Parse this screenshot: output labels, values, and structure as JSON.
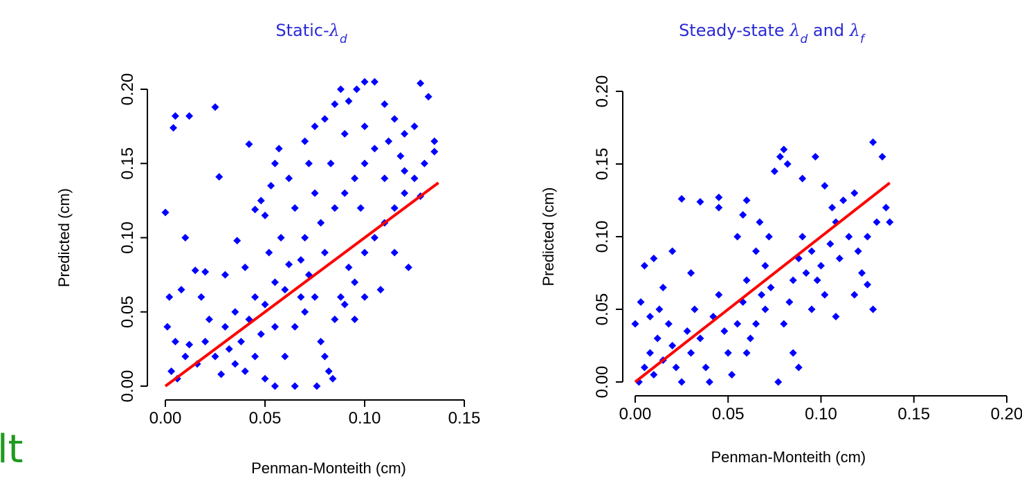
{
  "slide_fragment": "lt",
  "chart_data": [
    {
      "type": "scatter",
      "title": [
        {
          "text": "Static-",
          "style": "normal"
        },
        {
          "text": "λ",
          "style": "italic"
        },
        {
          "text": "d",
          "style": "subscript"
        }
      ],
      "xlabel": "Penman-Monteith (cm)",
      "ylabel": "Predicted  (cm)",
      "xlim": [
        0,
        0.15
      ],
      "ylim": [
        0,
        0.2
      ],
      "xticks": [
        {
          "value": 0,
          "label": "0.00"
        },
        {
          "value": 0.05,
          "label": "0.05"
        },
        {
          "value": 0.1,
          "label": "0.10"
        },
        {
          "value": 0.15,
          "label": "0.15"
        }
      ],
      "yticks": [
        {
          "value": 0,
          "label": "0.00"
        },
        {
          "value": 0.05,
          "label": "0.05"
        },
        {
          "value": 0.1,
          "label": "0.10"
        },
        {
          "value": 0.15,
          "label": "0.15"
        },
        {
          "value": 0.2,
          "label": "0.20"
        }
      ],
      "color": "#0000ff",
      "x": [
        0,
        0.005,
        0.004,
        0.012,
        0.025,
        0.042,
        0.027,
        0.01,
        0.045,
        0.036,
        0.02,
        0.015,
        0.03,
        0.002,
        0.008,
        0.018,
        0.022,
        0.001,
        0.005,
        0.01,
        0.003,
        0.006,
        0.012,
        0.016,
        0.02,
        0.025,
        0.028,
        0.032,
        0.035,
        0.038,
        0.04,
        0.045,
        0.048,
        0.05,
        0.055,
        0.06,
        0.065,
        0.055,
        0.042,
        0.035,
        0.03,
        0.045,
        0.05,
        0.055,
        0.06,
        0.052,
        0.058,
        0.05,
        0.048,
        0.053,
        0.055,
        0.057,
        0.062,
        0.065,
        0.07,
        0.068,
        0.072,
        0.075,
        0.07,
        0.065,
        0.078,
        0.08,
        0.082,
        0.076,
        0.084,
        0.085,
        0.088,
        0.09,
        0.092,
        0.095,
        0.08,
        0.078,
        0.075,
        0.072,
        0.07,
        0.075,
        0.08,
        0.085,
        0.088,
        0.092,
        0.096,
        0.1,
        0.105,
        0.11,
        0.115,
        0.12,
        0.125,
        0.128,
        0.132,
        0.135,
        0.13,
        0.125,
        0.12,
        0.115,
        0.11,
        0.105,
        0.1,
        0.098,
        0.095,
        0.09,
        0.085,
        0.1,
        0.105,
        0.11,
        0.118,
        0.122,
        0.115,
        0.108,
        0.1,
        0.095,
        0.128,
        0.135,
        0.09,
        0.083,
        0.1,
        0.112,
        0.12,
        0.068,
        0.062,
        0.04
      ],
      "values": [
        0.117,
        0.182,
        0.174,
        0.182,
        0.188,
        0.163,
        0.141,
        0.1,
        0.119,
        0.098,
        0.077,
        0.078,
        0.075,
        0.06,
        0.065,
        0.06,
        0.045,
        0.04,
        0.03,
        0.02,
        0.01,
        0.005,
        0.028,
        0.015,
        0.03,
        0.02,
        0.008,
        0.025,
        0.015,
        0.03,
        0.01,
        0.02,
        0.035,
        0.005,
        0.04,
        0.02,
        0,
        0,
        0.045,
        0.05,
        0.04,
        0.06,
        0.055,
        0.07,
        0.065,
        0.09,
        0.1,
        0.115,
        0.125,
        0.135,
        0.15,
        0.16,
        0.14,
        0.12,
        0.1,
        0.085,
        0.075,
        0.06,
        0.05,
        0.04,
        0.03,
        0.02,
        0.01,
        0,
        0.005,
        0.045,
        0.06,
        0.055,
        0.08,
        0.07,
        0.09,
        0.11,
        0.13,
        0.15,
        0.165,
        0.175,
        0.18,
        0.19,
        0.2,
        0.192,
        0.2,
        0.205,
        0.205,
        0.19,
        0.18,
        0.17,
        0.175,
        0.204,
        0.195,
        0.165,
        0.15,
        0.14,
        0.13,
        0.12,
        0.11,
        0.1,
        0.09,
        0.12,
        0.14,
        0.13,
        0.12,
        0.15,
        0.16,
        0.14,
        0.155,
        0.08,
        0.09,
        0.065,
        0.06,
        0.045,
        0.128,
        0.158,
        0.17,
        0.15,
        0.175,
        0.165,
        0.145,
        0.06,
        0.082,
        0.08
      ],
      "fit_line": {
        "color": "#ff0000",
        "x": [
          0,
          0.137
        ],
        "y": [
          0,
          0.137
        ]
      }
    },
    {
      "type": "scatter",
      "title": [
        {
          "text": "Steady-state ",
          "style": "normal"
        },
        {
          "text": "λ",
          "style": "italic"
        },
        {
          "text": "d",
          "style": "subscript"
        },
        {
          "text": " and ",
          "style": "normal"
        },
        {
          "text": "λ",
          "style": "italic"
        },
        {
          "text": "f",
          "style": "subscript"
        }
      ],
      "xlabel": "Penman-Monteith (cm)",
      "ylabel": "Predicted (cm)",
      "xlim": [
        0,
        0.2
      ],
      "ylim": [
        0,
        0.2
      ],
      "xticks": [
        {
          "value": 0,
          "label": "0.00"
        },
        {
          "value": 0.05,
          "label": "0.05"
        },
        {
          "value": 0.1,
          "label": "0.10"
        },
        {
          "value": 0.15,
          "label": "0.15"
        },
        {
          "value": 0.2,
          "label": "0.20"
        }
      ],
      "yticks": [
        {
          "value": 0,
          "label": "0.00"
        },
        {
          "value": 0.05,
          "label": "0.05"
        },
        {
          "value": 0.1,
          "label": "0.10"
        },
        {
          "value": 0.15,
          "label": "0.15"
        },
        {
          "value": 0.2,
          "label": "0.20"
        }
      ],
      "color": "#0000ff",
      "x": [
        0,
        0.005,
        0.01,
        0.015,
        0.02,
        0.025,
        0.035,
        0.045,
        0.045,
        0.03,
        0.002,
        0.005,
        0.008,
        0.01,
        0.012,
        0.015,
        0.018,
        0.02,
        0.022,
        0.025,
        0.028,
        0.03,
        0.032,
        0.035,
        0.038,
        0.04,
        0.042,
        0.045,
        0.048,
        0.05,
        0.052,
        0.055,
        0.058,
        0.06,
        0.062,
        0.055,
        0.058,
        0.06,
        0.065,
        0.068,
        0.07,
        0.072,
        0.075,
        0.078,
        0.08,
        0.082,
        0.077,
        0.085,
        0.088,
        0.08,
        0.083,
        0.085,
        0.088,
        0.09,
        0.092,
        0.095,
        0.098,
        0.1,
        0.102,
        0.105,
        0.108,
        0.11,
        0.112,
        0.115,
        0.118,
        0.12,
        0.122,
        0.125,
        0.128,
        0.13,
        0.125,
        0.133,
        0.135,
        0.137,
        0.128,
        0.118,
        0.108,
        0.095,
        0.09,
        0.097,
        0.102,
        0.106,
        0.003,
        0.008,
        0.013,
        0.06,
        0.065,
        0.07,
        0.073,
        0.067
      ],
      "values": [
        0.04,
        0.08,
        0.085,
        0.065,
        0.09,
        0.126,
        0.124,
        0.127,
        0.12,
        0.075,
        0,
        0.01,
        0.02,
        0.005,
        0.03,
        0.015,
        0.04,
        0.025,
        0.01,
        0,
        0.035,
        0.02,
        0.05,
        0.03,
        0.01,
        0,
        0.045,
        0.06,
        0.035,
        0.02,
        0.005,
        0.04,
        0.055,
        0.07,
        0.03,
        0.1,
        0.115,
        0.125,
        0.09,
        0.06,
        0.08,
        0.1,
        0.145,
        0.155,
        0.16,
        0.15,
        0,
        0.02,
        0.01,
        0.04,
        0.055,
        0.07,
        0.085,
        0.1,
        0.075,
        0.09,
        0.07,
        0.08,
        0.06,
        0.095,
        0.11,
        0.085,
        0.125,
        0.1,
        0.13,
        0.09,
        0.075,
        0.1,
        0.165,
        0.11,
        0.067,
        0.155,
        0.12,
        0.11,
        0.05,
        0.06,
        0.045,
        0.05,
        0.14,
        0.155,
        0.135,
        0.12,
        0.055,
        0.045,
        0.05,
        0.02,
        0.04,
        0.05,
        0.065,
        0.11
      ],
      "fit_line": {
        "color": "#ff0000",
        "x": [
          0,
          0.137
        ],
        "y": [
          0,
          0.137
        ]
      }
    }
  ]
}
